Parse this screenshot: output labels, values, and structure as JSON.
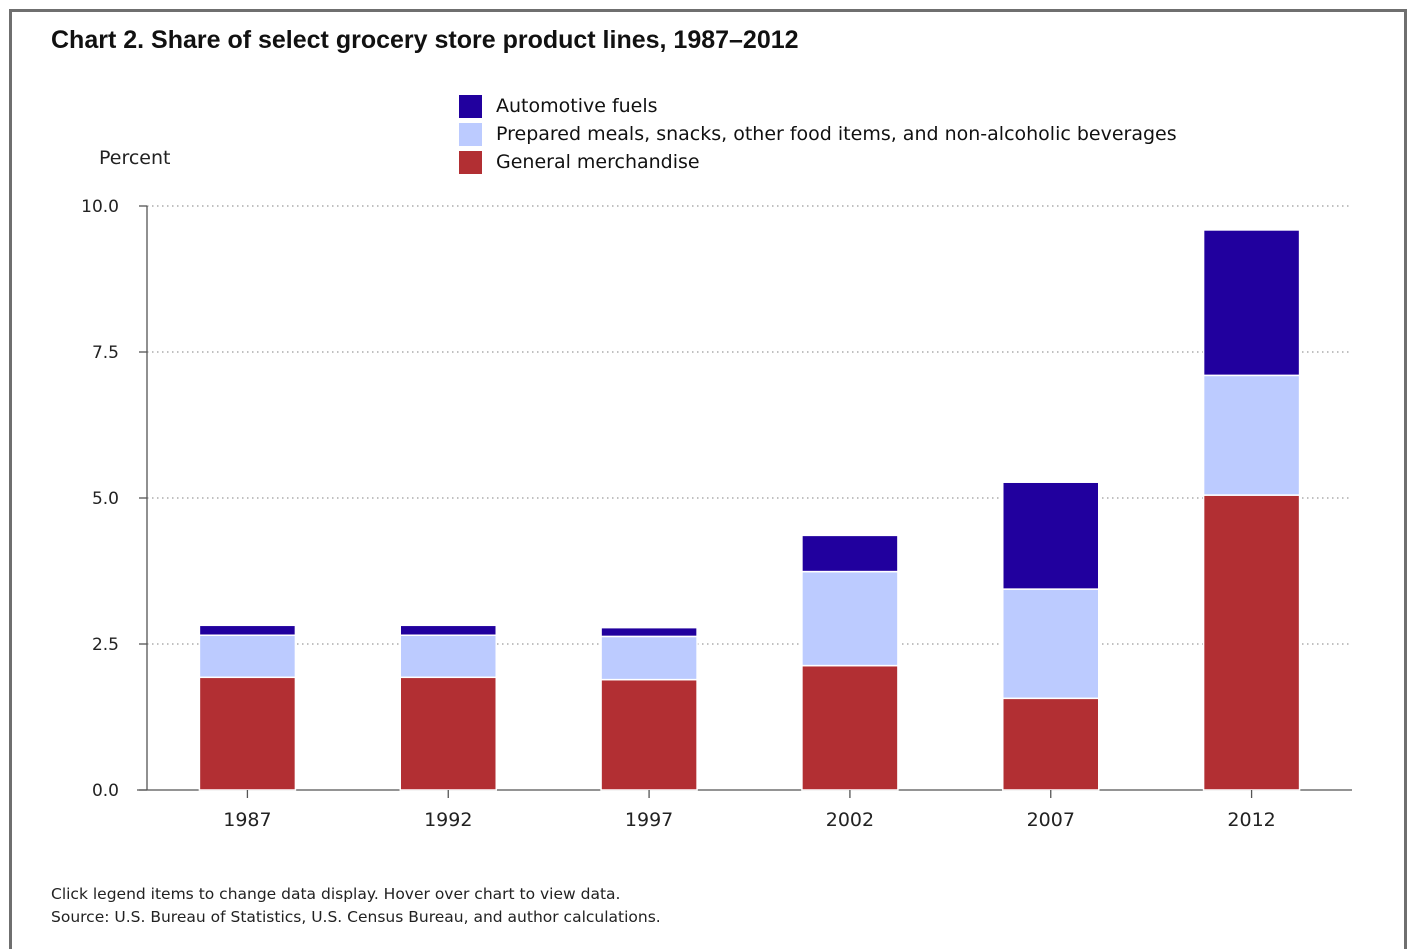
{
  "colors": {
    "automotive_fuels": "#21009e",
    "prepared_meals": "#bccbff",
    "general_merchandise": "#b22f33",
    "gridline": "#9a9a9a",
    "axis": "#555555"
  },
  "chart_data": {
    "type": "bar",
    "stacked": true,
    "title": "Chart 2. Share of select grocery store product lines, 1987–2012",
    "ylabel": "Percent",
    "xlabel": "",
    "ylim": [
      0,
      10
    ],
    "yticks": [
      "0.0",
      "2.5",
      "5.0",
      "7.5",
      "10.0"
    ],
    "grid": true,
    "legend_position": "top",
    "categories": [
      "1987",
      "1992",
      "1997",
      "2002",
      "2007",
      "2012"
    ],
    "series": [
      {
        "name": "General merchandise",
        "key": "general_merchandise",
        "values": [
          1.93,
          1.93,
          1.89,
          2.13,
          1.57,
          5.05
        ]
      },
      {
        "name": "Prepared meals, snacks, other food items, and non-alcoholic beverages",
        "key": "prepared_meals",
        "values": [
          0.72,
          0.72,
          0.74,
          1.61,
          1.87,
          2.05
        ]
      },
      {
        "name": "Automotive fuels",
        "key": "automotive_fuels",
        "values": [
          0.17,
          0.17,
          0.15,
          0.62,
          1.83,
          2.49
        ]
      }
    ],
    "legend_order": [
      "automotive_fuels",
      "prepared_meals",
      "general_merchandise"
    ]
  },
  "footnotes": {
    "interaction": "Click legend items to change data display. Hover over chart to view data.",
    "source": "Source: U.S. Bureau of Statistics, U.S. Census Bureau, and author calculations."
  }
}
